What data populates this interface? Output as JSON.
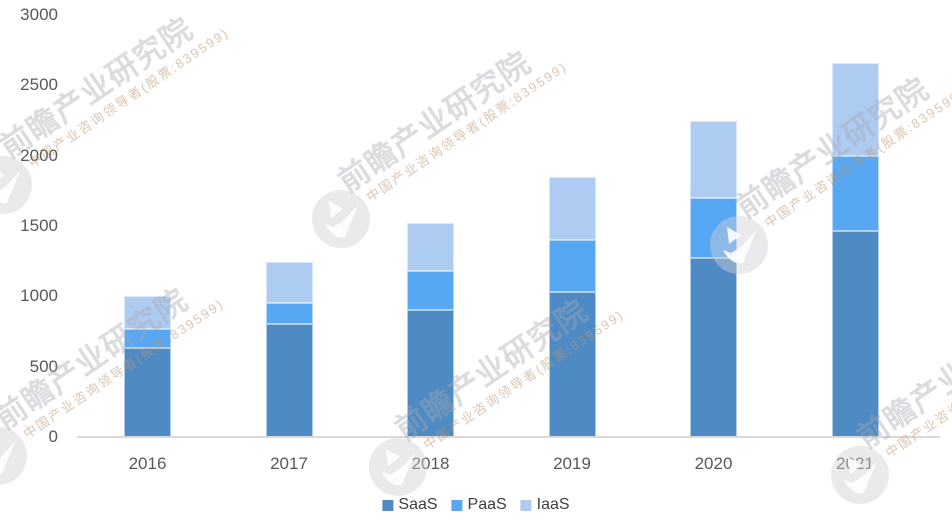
{
  "chart_data": {
    "type": "bar",
    "stacked": true,
    "title": "",
    "xlabel": "",
    "ylabel": "",
    "categories": [
      "2016",
      "2017",
      "2018",
      "2019",
      "2020",
      "2021"
    ],
    "series": [
      {
        "name": "SaaS",
        "color": "#4E8BC4",
        "values": [
          630,
          800,
          900,
          1030,
          1270,
          1465
        ]
      },
      {
        "name": "PaaS",
        "color": "#57A7F2",
        "values": [
          140,
          155,
          280,
          370,
          430,
          535
        ]
      },
      {
        "name": "IaaS",
        "color": "#AECBF2",
        "values": [
          230,
          290,
          340,
          445,
          545,
          660
        ]
      }
    ],
    "totals": [
      1000,
      1245,
      1520,
      1845,
      2245,
      2660
    ],
    "ylim": [
      0,
      3000
    ],
    "y_ticks": [
      0,
      500,
      1000,
      1500,
      2000,
      2500,
      3000
    ],
    "grid": false,
    "legend_position": "bottom-center",
    "axis_line_color": "#d9d9d9",
    "tick_text_color": "#595959",
    "legend_text_color": "#3f3f3f"
  },
  "watermark": {
    "title": "前瞻产业研究院",
    "subtitle": "中国产业咨询领导者(股票:839599)"
  }
}
